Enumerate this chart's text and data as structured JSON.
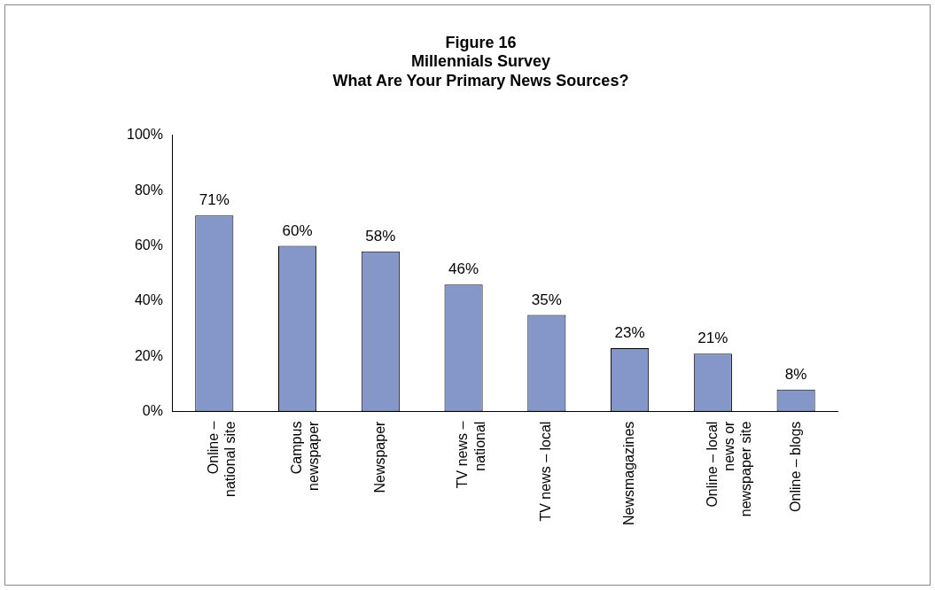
{
  "chart_data": {
    "type": "bar",
    "title": "Figure 16\nMillennials Survey\nWhat Are Your Primary News Sources?",
    "categories": [
      "Online –\nnational site",
      "Campus\nnewspaper",
      "Newspaper",
      "TV news –\nnational",
      "TV news – local",
      "Newsmagazines",
      "Online – local\nnews or\nnewspaper site",
      "Online – blogs"
    ],
    "values": [
      71,
      60,
      58,
      46,
      35,
      23,
      21,
      8
    ],
    "value_labels": [
      "71%",
      "60%",
      "58%",
      "46%",
      "35%",
      "23%",
      "21%",
      "8%"
    ],
    "color": "#8497c8",
    "ylim": [
      0,
      100
    ],
    "yticks": [
      {
        "value": 0,
        "label": "0%"
      },
      {
        "value": 20,
        "label": "20%"
      },
      {
        "value": 40,
        "label": "40%"
      },
      {
        "value": 60,
        "label": "60%"
      },
      {
        "value": 80,
        "label": "80%"
      },
      {
        "value": 100,
        "label": "100%"
      }
    ],
    "grid": false,
    "legend": false
  }
}
